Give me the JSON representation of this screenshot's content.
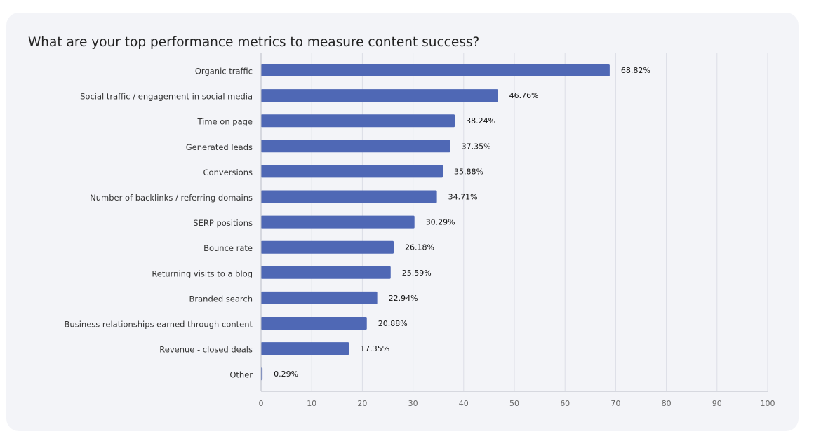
{
  "chart_data": {
    "type": "bar",
    "orientation": "horizontal",
    "title": "What are your top performance metrics to measure content success?",
    "categories": [
      "Organic traffic",
      "Social traffic / engagement in social media",
      "Time on page",
      "Generated leads",
      "Conversions",
      "Number of backlinks / referring domains",
      "SERP positions",
      "Bounce rate",
      "Returning visits to a blog",
      "Branded search",
      "Business relationships earned through content",
      "Revenue - closed deals",
      "Other"
    ],
    "values": [
      68.82,
      46.76,
      38.24,
      37.35,
      35.88,
      34.71,
      30.29,
      26.18,
      25.59,
      22.94,
      20.88,
      17.35,
      0.29
    ],
    "value_labels": [
      "68.82%",
      "46.76%",
      "38.24%",
      "37.35%",
      "35.88%",
      "34.71%",
      "30.29%",
      "26.18%",
      "25.59%",
      "22.94%",
      "20.88%",
      "17.35%",
      "0.29%"
    ],
    "xlim": [
      0,
      100
    ],
    "xticks": [
      "0",
      "10",
      "20",
      "30",
      "40",
      "50",
      "60",
      "70",
      "80",
      "90",
      "100"
    ],
    "xlabel": "",
    "ylabel": "",
    "grid": "vertical",
    "legend": "none",
    "colors": {
      "bar": "#4f68b5",
      "grid": "#dcdee6",
      "axis": "#b9bcc6",
      "card": "#f3f4f8"
    }
  }
}
